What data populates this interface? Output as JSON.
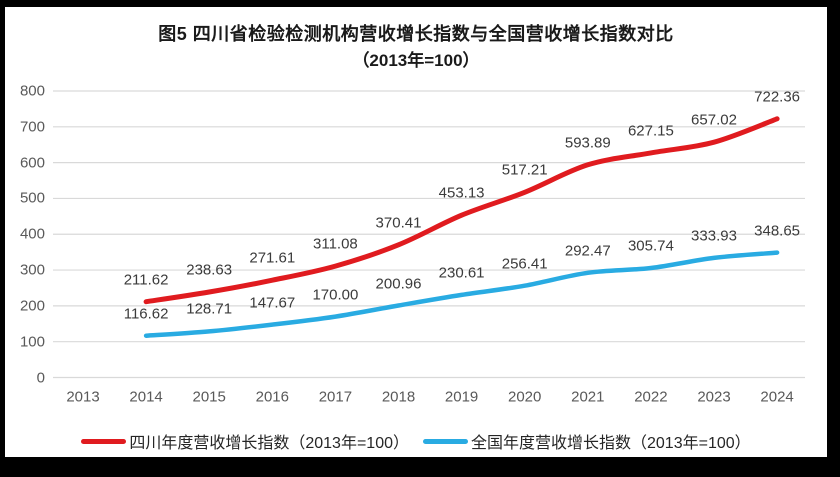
{
  "frame": {
    "background": "#000000",
    "chart_background": "#ffffff"
  },
  "chart_data": {
    "type": "line",
    "title": "图5  四川省检验检测机构营收增长指数与全国营收增长指数对比",
    "subtitle": "（2013年=100）",
    "xlabel": "",
    "ylabel": "",
    "x_ticks": [
      "2013",
      "2014",
      "2015",
      "2016",
      "2017",
      "2018",
      "2019",
      "2020",
      "2021",
      "2022",
      "2023",
      "2024"
    ],
    "x_start_year": 2013,
    "ylim": [
      0,
      800
    ],
    "y_ticks": [
      0,
      100,
      200,
      300,
      400,
      500,
      600,
      700,
      800
    ],
    "grid": true,
    "gridline_color": "#d9d9d9",
    "tick_label_color": "#595959",
    "data_label_color": "#3b3b3b",
    "legend_position": "bottom",
    "series": [
      {
        "name": "四川年度营收增长指数（2013年=100）",
        "color": "#e01b1f",
        "line_width": 5,
        "x": [
          2014,
          2015,
          2016,
          2017,
          2018,
          2019,
          2020,
          2021,
          2022,
          2023,
          2024
        ],
        "values": [
          211.62,
          238.63,
          271.61,
          311.08,
          370.41,
          453.13,
          517.21,
          593.89,
          627.15,
          657.02,
          722.36
        ],
        "labels": [
          "211.62",
          "238.63",
          "271.61",
          "311.08",
          "370.41",
          "453.13",
          "517.21",
          "593.89",
          "627.15",
          "657.02",
          "722.36"
        ]
      },
      {
        "name": "全国年度营收增长指数（2013年=100）",
        "color": "#29abe2",
        "line_width": 4.5,
        "x": [
          2014,
          2015,
          2016,
          2017,
          2018,
          2019,
          2020,
          2021,
          2022,
          2023,
          2024
        ],
        "values": [
          116.62,
          128.71,
          147.67,
          170.0,
          200.96,
          230.61,
          256.41,
          292.47,
          305.74,
          333.93,
          348.65
        ],
        "labels": [
          "116.62",
          "128.71",
          "147.67",
          "170.00",
          "200.96",
          "230.61",
          "256.41",
          "292.47",
          "305.74",
          "333.93",
          "348.65"
        ]
      }
    ]
  }
}
